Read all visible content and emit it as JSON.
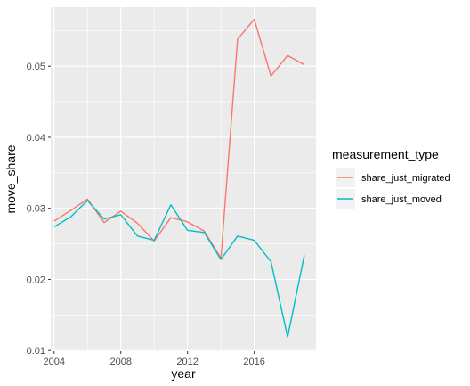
{
  "chart_data": {
    "type": "line",
    "xlabel": "year",
    "ylabel": "move_share",
    "xlim": [
      2003.8,
      2019.7
    ],
    "ylim": [
      0.0099,
      0.0583
    ],
    "x_ticks": [
      2004,
      2008,
      2012,
      2016
    ],
    "y_ticks": [
      0.01,
      0.02,
      0.03,
      0.04,
      0.05
    ],
    "x_tick_labels": [
      "2004",
      "2008",
      "2012",
      "2016"
    ],
    "y_tick_labels": [
      "0.01",
      "0.02",
      "0.03",
      "0.04",
      "0.05"
    ],
    "grid": true,
    "legend": {
      "title": "measurement_type",
      "position": "right"
    },
    "x": [
      2004,
      2005,
      2006,
      2007,
      2008,
      2009,
      2010,
      2011,
      2012,
      2013,
      2014,
      2015,
      2016,
      2017,
      2018,
      2019
    ],
    "series": [
      {
        "name": "share_just_migrated",
        "color": "#F8766D",
        "values": [
          0.0282,
          0.0297,
          0.0313,
          0.028,
          0.0296,
          0.0279,
          0.0254,
          0.0287,
          0.0281,
          0.0268,
          0.023,
          0.0538,
          0.0566,
          0.0486,
          0.0515,
          0.0502
        ]
      },
      {
        "name": "share_just_moved",
        "color": "#00BFC4",
        "values": [
          0.0274,
          0.0288,
          0.0311,
          0.0285,
          0.0291,
          0.0261,
          0.0255,
          0.0305,
          0.0269,
          0.0266,
          0.0228,
          0.0261,
          0.0255,
          0.0225,
          0.0119,
          0.0234
        ]
      }
    ]
  },
  "colors": {
    "panel_background": "#EBEBEB",
    "grid_major": "#FFFFFF",
    "legend_key_background": "#F2F2F2"
  }
}
